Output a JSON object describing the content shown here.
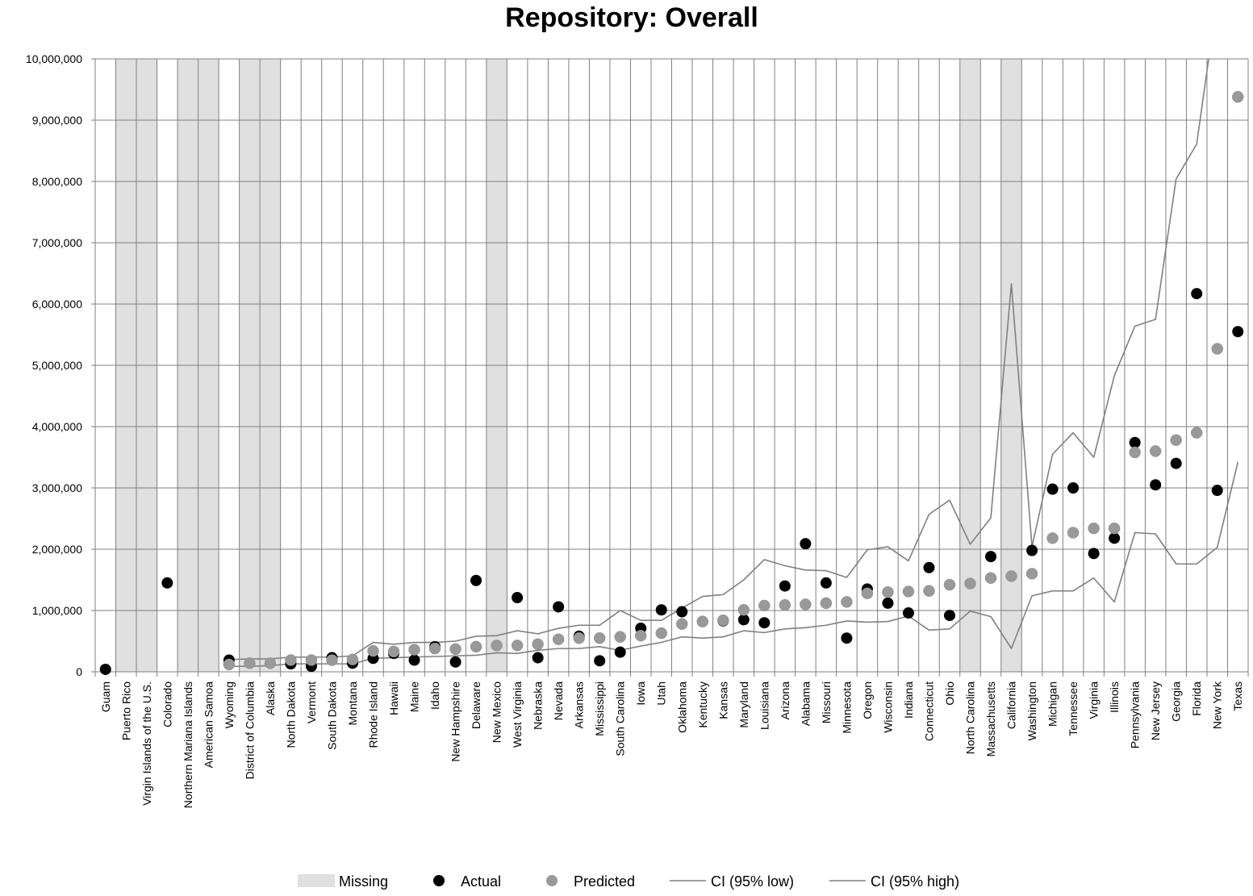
{
  "chart_data": {
    "type": "scatter",
    "title": "Repository: Overall",
    "xlabel": "",
    "ylabel": "",
    "ylim": [
      0,
      10000000
    ],
    "yticks": [
      0,
      1000000,
      2000000,
      3000000,
      4000000,
      5000000,
      6000000,
      7000000,
      8000000,
      9000000,
      10000000
    ],
    "ytick_labels": [
      "0",
      "1,000,000",
      "2,000,000",
      "3,000,000",
      "4,000,000",
      "5,000,000",
      "6,000,000",
      "7,000,000",
      "8,000,000",
      "9,000,000",
      "10,000,000"
    ],
    "grid": true,
    "legend_position": "bottom",
    "colors": {
      "missing": "#e0e0e0",
      "actual": "#000000",
      "predicted": "#999999",
      "ci": "#808080",
      "grid": "#808080"
    },
    "categories": [
      "Guam",
      "Puerto Rico",
      "Virgin Islands of the U.S.",
      "Colorado",
      "Northern Mariana Islands",
      "American Samoa",
      "Wyoming",
      "District of Columbia",
      "Alaska",
      "North Dakota",
      "Vermont",
      "South Dakota",
      "Montana",
      "Rhode Island",
      "Hawaii",
      "Maine",
      "Idaho",
      "New Hampshire",
      "Delaware",
      "New Mexico",
      "West Virginia",
      "Nebraska",
      "Nevada",
      "Arkansas",
      "Mississippi",
      "South Carolina",
      "Iowa",
      "Utah",
      "Oklahoma",
      "Kentucky",
      "Kansas",
      "Maryland",
      "Louisiana",
      "Arizona",
      "Alabama",
      "Missouri",
      "Minnesota",
      "Oregon",
      "Wisconsin",
      "Indiana",
      "Connecticut",
      "Ohio",
      "North Carolina",
      "Massachusetts",
      "California",
      "Washington",
      "Michigan",
      "Tennessee",
      "Virginia",
      "Illinois",
      "Pennsylvania",
      "New Jersey",
      "Georgia",
      "Florida",
      "New York",
      "Texas"
    ],
    "missing": [
      false,
      true,
      true,
      false,
      true,
      true,
      false,
      true,
      true,
      false,
      false,
      false,
      false,
      false,
      false,
      false,
      false,
      false,
      false,
      true,
      false,
      false,
      false,
      false,
      false,
      false,
      false,
      false,
      false,
      false,
      false,
      false,
      false,
      false,
      false,
      false,
      false,
      false,
      false,
      false,
      false,
      false,
      true,
      false,
      true,
      false,
      false,
      false,
      false,
      false,
      false,
      false,
      false,
      false,
      false,
      false
    ],
    "series": [
      {
        "name": "Actual",
        "kind": "points",
        "values": [
          40000,
          null,
          null,
          1450000,
          null,
          null,
          190000,
          null,
          null,
          130000,
          90000,
          230000,
          140000,
          220000,
          300000,
          190000,
          410000,
          160000,
          1490000,
          null,
          1210000,
          230000,
          1060000,
          580000,
          180000,
          320000,
          710000,
          1010000,
          980000,
          820000,
          830000,
          850000,
          800000,
          1400000,
          2090000,
          1450000,
          550000,
          1350000,
          1120000,
          960000,
          1700000,
          920000,
          null,
          1880000,
          null,
          1980000,
          2980000,
          3000000,
          1930000,
          2180000,
          3740000,
          3050000,
          3400000,
          6170000,
          2960000,
          5550000
        ]
      },
      {
        "name": "Predicted",
        "kind": "points",
        "values": [
          null,
          null,
          null,
          null,
          null,
          null,
          120000,
          140000,
          140000,
          190000,
          190000,
          190000,
          200000,
          340000,
          330000,
          360000,
          380000,
          370000,
          410000,
          430000,
          430000,
          450000,
          530000,
          550000,
          550000,
          570000,
          590000,
          630000,
          780000,
          820000,
          840000,
          1010000,
          1080000,
          1090000,
          1100000,
          1120000,
          1140000,
          1280000,
          1300000,
          1310000,
          1320000,
          1420000,
          1440000,
          1530000,
          1560000,
          1600000,
          2180000,
          2270000,
          2340000,
          2340000,
          3580000,
          3600000,
          3780000,
          3900000,
          5270000,
          9380000
        ]
      },
      {
        "name": "CI (95% low)",
        "kind": "line",
        "values": [
          null,
          null,
          null,
          null,
          null,
          null,
          90000,
          90000,
          100000,
          130000,
          130000,
          130000,
          130000,
          220000,
          230000,
          240000,
          250000,
          260000,
          270000,
          310000,
          300000,
          350000,
          380000,
          380000,
          410000,
          350000,
          420000,
          480000,
          570000,
          550000,
          570000,
          670000,
          640000,
          700000,
          720000,
          760000,
          830000,
          810000,
          820000,
          910000,
          680000,
          700000,
          990000,
          900000,
          380000,
          1240000,
          1320000,
          1320000,
          1530000,
          1140000,
          2270000,
          2250000,
          1760000,
          1760000,
          2030000,
          3420000
        ]
      },
      {
        "name": "CI (95% high)",
        "kind": "line",
        "values": [
          null,
          null,
          null,
          null,
          null,
          null,
          200000,
          210000,
          210000,
          240000,
          240000,
          240000,
          260000,
          480000,
          450000,
          480000,
          480000,
          500000,
          580000,
          590000,
          670000,
          620000,
          710000,
          760000,
          760000,
          1000000,
          840000,
          840000,
          1040000,
          1230000,
          1260000,
          1500000,
          1830000,
          1730000,
          1660000,
          1650000,
          1540000,
          1990000,
          2040000,
          1810000,
          2570000,
          2800000,
          2080000,
          2510000,
          6330000,
          2040000,
          3550000,
          3900000,
          3500000,
          4830000,
          5640000,
          5750000,
          8040000,
          8610000,
          11000000,
          null
        ]
      }
    ],
    "legend": [
      "Missing",
      "Actual",
      "Predicted",
      "CI (95% low)",
      "CI (95% high)"
    ]
  }
}
